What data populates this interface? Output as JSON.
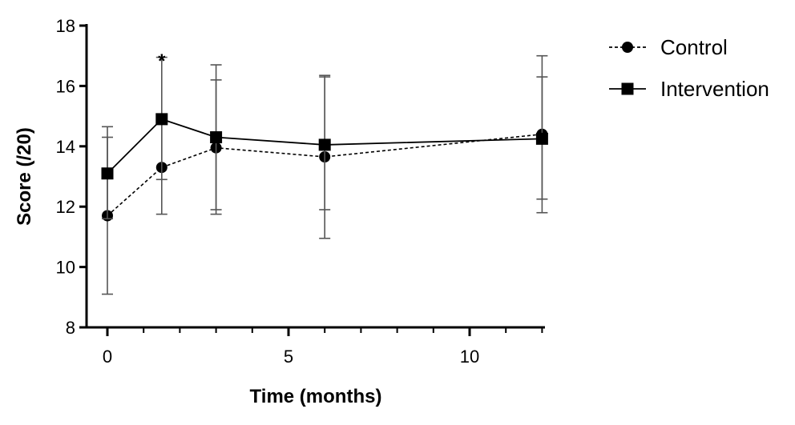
{
  "chart_data": {
    "type": "line",
    "title": "",
    "xlabel": "Time (months)",
    "ylabel": "Score (/20)",
    "xlim": [
      -0.6,
      12.2
    ],
    "ylim": [
      8,
      18
    ],
    "xticks": [
      0,
      5,
      10
    ],
    "yticks": [
      8,
      10,
      12,
      14,
      16,
      18
    ],
    "grid": false,
    "legend": "top-right",
    "annotations": [
      {
        "text": "*",
        "x": 1.5,
        "y": 17.2
      }
    ],
    "series": [
      {
        "name": "Control",
        "marker": "circle",
        "line_style": "dashed",
        "color": "#000000",
        "x": [
          0,
          1.5,
          3,
          6,
          12
        ],
        "y": [
          11.7,
          13.3,
          13.95,
          13.65,
          14.4
        ],
        "err_low": [
          9.1,
          11.75,
          11.75,
          10.95,
          11.8
        ],
        "err_high": [
          14.3,
          14.9,
          16.2,
          16.35,
          17.0
        ]
      },
      {
        "name": "Intervention",
        "marker": "square",
        "line_style": "solid",
        "color": "#000000",
        "x": [
          0,
          1.5,
          3,
          6,
          12
        ],
        "y": [
          13.1,
          14.9,
          14.3,
          14.05,
          14.25
        ],
        "err_low": [
          11.6,
          12.9,
          11.9,
          11.9,
          12.25
        ],
        "err_high": [
          14.65,
          16.95,
          16.7,
          16.3,
          16.3
        ]
      }
    ]
  }
}
